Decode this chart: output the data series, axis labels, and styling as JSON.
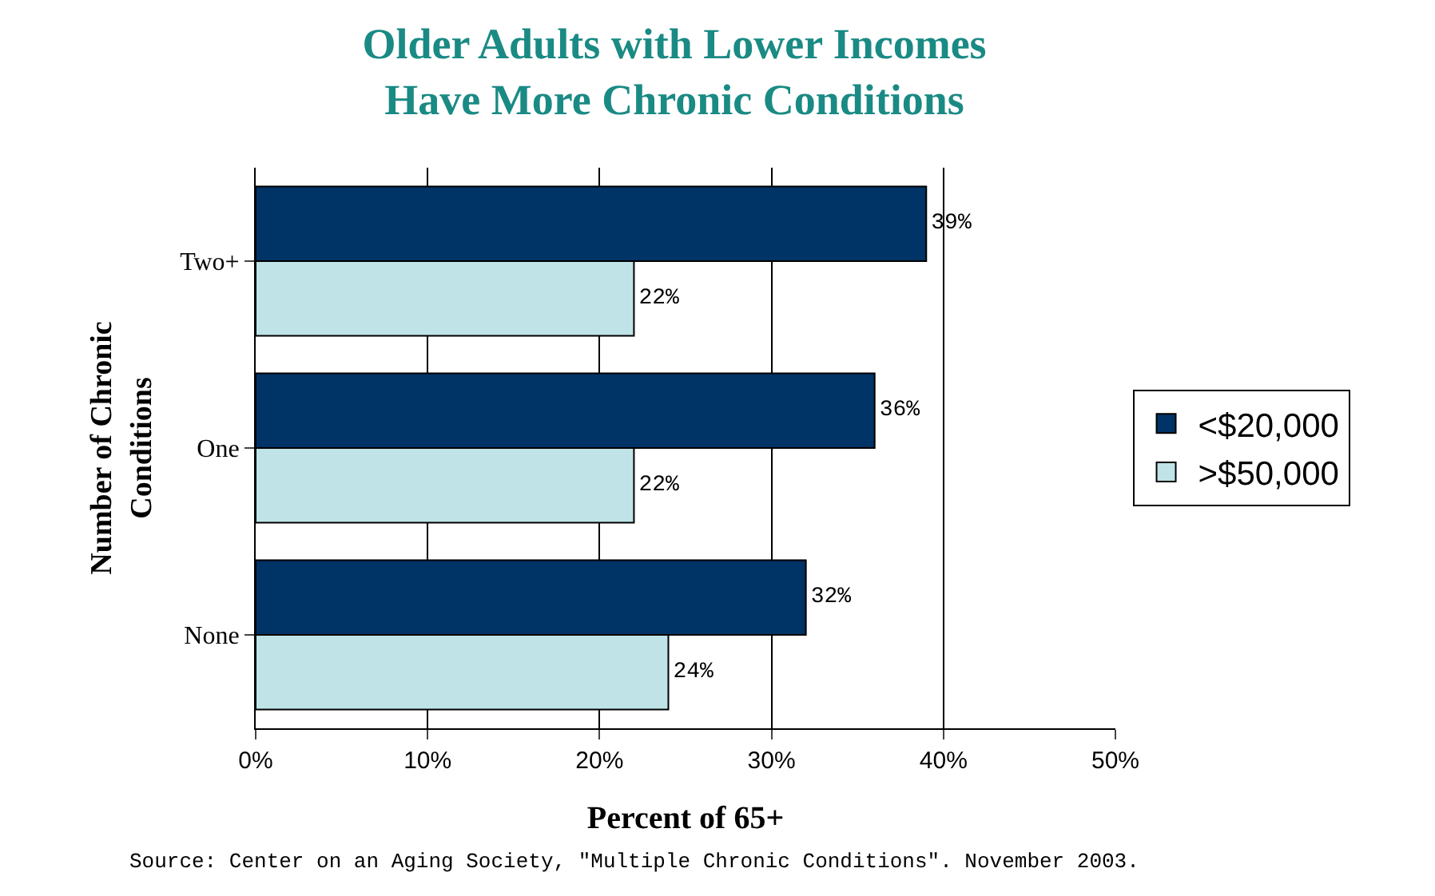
{
  "chart_data": {
    "type": "bar",
    "orientation": "horizontal",
    "title": "Older Adults with Lower Incomes\nHave More Chronic Conditions",
    "xlabel": "Percent of 65+",
    "ylabel": "Number of Chronic\nConditions",
    "categories": [
      "Two+",
      "One",
      "None"
    ],
    "series": [
      {
        "name": "<$20,000",
        "color": "#003366",
        "values": [
          39,
          36,
          32
        ],
        "value_labels": [
          "39%",
          "36%",
          "32%"
        ]
      },
      {
        "name": ">$50,000",
        "color": "#bfe3e6",
        "values": [
          22,
          22,
          24
        ],
        "value_labels": [
          "22%",
          "22%",
          "24%"
        ]
      }
    ],
    "xlim": [
      0,
      50
    ],
    "xticks": [
      {
        "value": 0,
        "label": "0%"
      },
      {
        "value": 10,
        "label": "10%"
      },
      {
        "value": 20,
        "label": "20%"
      },
      {
        "value": 30,
        "label": "30%"
      },
      {
        "value": 40,
        "label": "40%"
      },
      {
        "value": 50,
        "label": "50%"
      }
    ],
    "grid": "x",
    "legend": "right",
    "annotations": [
      "Source: Center on an Aging Society, \"Multiple Chronic Conditions\". November 2003."
    ]
  }
}
